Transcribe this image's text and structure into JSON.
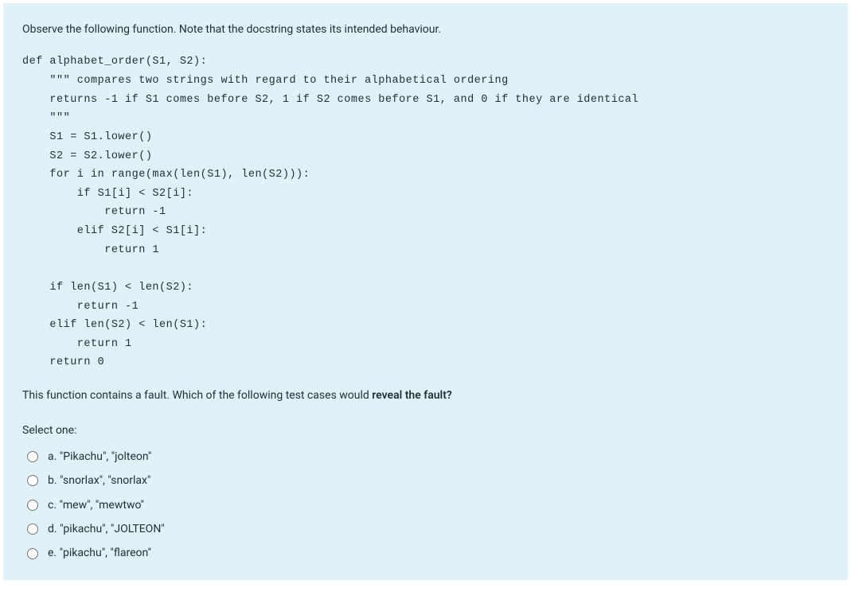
{
  "colors": {
    "card_background": "#def2f8",
    "text": "#232f3e"
  },
  "intro": "Observe the following function.  Note that the docstring states its intended behaviour.",
  "code": "def alphabet_order(S1, S2):\n    \"\"\" compares two strings with regard to their alphabetical ordering\n    returns -1 if S1 comes before S2, 1 if S2 comes before S1, and 0 if they are identical\n    \"\"\"\n    S1 = S1.lower()\n    S2 = S2.lower()\n    for i in range(max(len(S1), len(S2))):\n        if S1[i] < S2[i]:\n            return -1\n        elif S2[i] < S1[i]:\n            return 1\n\n    if len(S1) < len(S2):\n        return -1\n    elif len(S2) < len(S1):\n        return 1\n    return 0",
  "question_prefix": "This function contains a fault.  Which of the following test cases would ",
  "question_bold": "reveal the fault?",
  "select_prompt": "Select one:",
  "options": [
    {
      "letter": "a.",
      "text": "\"Pikachu\", \"jolteon\""
    },
    {
      "letter": "b.",
      "text": "\"snorlax\", \"snorlax\""
    },
    {
      "letter": "c.",
      "text": "\"mew\", \"mewtwo\""
    },
    {
      "letter": "d.",
      "text": "\"pikachu\", \"JOLTEON\""
    },
    {
      "letter": "e.",
      "text": "\"pikachu\", \"flareon\""
    }
  ]
}
